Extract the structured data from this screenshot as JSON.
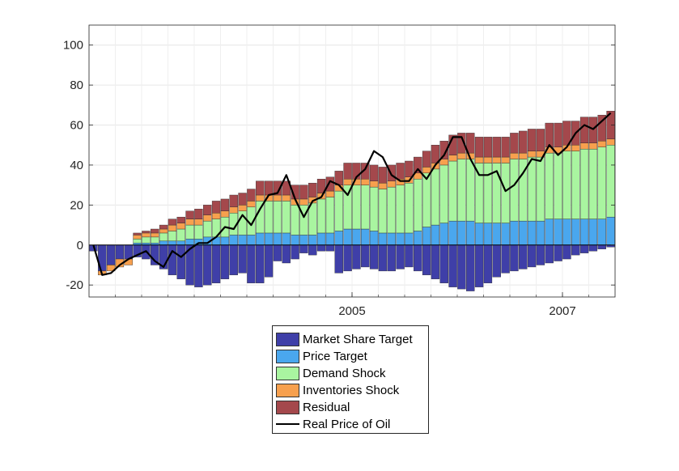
{
  "chart_data": {
    "type": "bar",
    "stacked": true,
    "title": "",
    "xlabel": "",
    "ylabel": "",
    "ylim": [
      -26,
      110
    ],
    "yticks": [
      -20,
      0,
      20,
      40,
      60,
      80,
      100
    ],
    "xticks": [
      {
        "label": "2005",
        "index": 30
      },
      {
        "label": "2007",
        "index": 54
      }
    ],
    "grid": true,
    "legend_position": "bottom",
    "n_periods": 60,
    "series": [
      {
        "name": "Market Share Target",
        "color": "#3f3fa8",
        "values": [
          -3,
          -13,
          -10,
          -7,
          -7,
          -6,
          -7,
          -10,
          -12,
          -15,
          -17,
          -20,
          -21,
          -20,
          -19,
          -17,
          -15,
          -14,
          -19,
          -19,
          -16,
          -8,
          -9,
          -7,
          -4,
          -5,
          -3,
          -3,
          -14,
          -13,
          -12,
          -11,
          -12,
          -13,
          -13,
          -12,
          -11,
          -13,
          -15,
          -17,
          -19,
          -21,
          -22,
          -23,
          -21,
          -19,
          -16,
          -14,
          -13,
          -12,
          -11,
          -10,
          -9,
          -8,
          -7,
          -5,
          -4,
          -3,
          -2,
          -1
        ]
      },
      {
        "name": "Price Target",
        "color": "#4aa7ee",
        "values": [
          0,
          0,
          0,
          0,
          0,
          1,
          1,
          1,
          2,
          2,
          2,
          3,
          3,
          4,
          4,
          4,
          5,
          5,
          5,
          6,
          6,
          6,
          6,
          5,
          5,
          5,
          6,
          6,
          7,
          8,
          8,
          8,
          7,
          6,
          6,
          6,
          6,
          7,
          9,
          10,
          11,
          12,
          12,
          12,
          11,
          11,
          11,
          11,
          12,
          12,
          12,
          12,
          13,
          13,
          13,
          13,
          13,
          13,
          13,
          14
        ]
      },
      {
        "name": "Demand Shock",
        "color": "#a9f5a0",
        "values": [
          0,
          0,
          0,
          0,
          0,
          2,
          3,
          3,
          4,
          5,
          6,
          7,
          7,
          8,
          9,
          10,
          11,
          12,
          14,
          16,
          16,
          16,
          16,
          15,
          15,
          16,
          17,
          18,
          20,
          22,
          22,
          22,
          22,
          22,
          23,
          24,
          25,
          26,
          27,
          28,
          29,
          30,
          31,
          31,
          30,
          30,
          30,
          30,
          31,
          31,
          32,
          32,
          33,
          33,
          34,
          34,
          35,
          35,
          36,
          36
        ]
      },
      {
        "name": "Inventories Shock",
        "color": "#f7a04e",
        "values": [
          0,
          -2,
          -3,
          -4,
          -3,
          2,
          2,
          2,
          2,
          3,
          3,
          3,
          3,
          3,
          3,
          3,
          3,
          3,
          3,
          3,
          3,
          3,
          3,
          3,
          3,
          3,
          3,
          3,
          3,
          3,
          3,
          3,
          3,
          3,
          3,
          3,
          3,
          3,
          3,
          3,
          3,
          3,
          3,
          3,
          3,
          3,
          3,
          3,
          3,
          3,
          3,
          3,
          3,
          3,
          3,
          3,
          3,
          3,
          3,
          3
        ]
      },
      {
        "name": "Residual",
        "color": "#a4484c",
        "values": [
          0,
          0,
          0,
          0,
          0,
          1,
          1,
          2,
          2,
          3,
          3,
          4,
          5,
          5,
          6,
          6,
          6,
          6,
          6,
          7,
          7,
          7,
          7,
          7,
          7,
          7,
          7,
          7,
          7,
          8,
          8,
          8,
          8,
          8,
          8,
          8,
          8,
          8,
          8,
          9,
          9,
          10,
          10,
          10,
          10,
          10,
          10,
          10,
          10,
          11,
          11,
          11,
          12,
          12,
          12,
          12,
          13,
          13,
          13,
          14
        ]
      },
      {
        "name": "Real Price of Oil",
        "type": "line",
        "color": "#000000",
        "values": [
          0,
          -15,
          -14,
          -10,
          -7,
          -5,
          -3,
          -8,
          -11,
          -3,
          -6,
          -2,
          1,
          1,
          4,
          9,
          8,
          15,
          10,
          18,
          25,
          26,
          35,
          23,
          14,
          22,
          24,
          32,
          30,
          25,
          34,
          38,
          47,
          44,
          35,
          32,
          32,
          38,
          33,
          40,
          45,
          54,
          54,
          43,
          35,
          35,
          37,
          27,
          30,
          36,
          43,
          42,
          50,
          45,
          49,
          56,
          60,
          58,
          62,
          66
        ]
      }
    ]
  },
  "legend": {
    "items": [
      {
        "label": "Market Share Target"
      },
      {
        "label": "Price Target"
      },
      {
        "label": "Demand Shock"
      },
      {
        "label": "Inventories Shock"
      },
      {
        "label": "Residual"
      },
      {
        "label": "Real Price of Oil"
      }
    ]
  }
}
